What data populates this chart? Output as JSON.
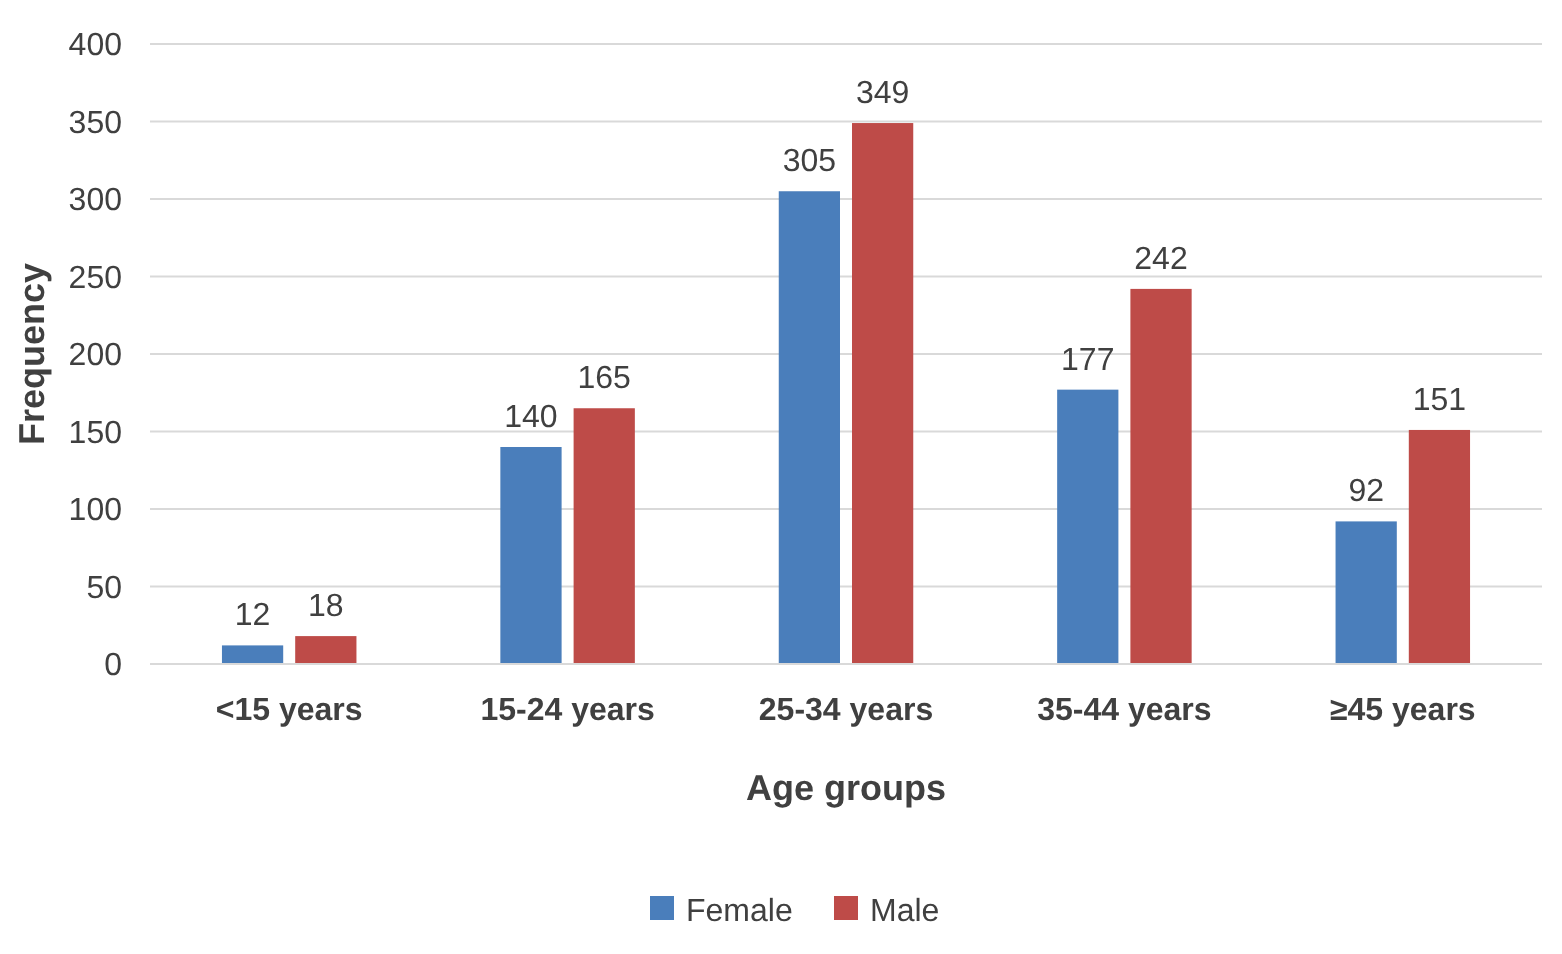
{
  "chart_data": {
    "type": "bar",
    "xlabel": "Age groups",
    "ylabel": "Frequency",
    "categories": [
      "<15 years",
      "15-24 years",
      "25-34 years",
      "35-44 years",
      "≥45 years"
    ],
    "series": [
      {
        "name": "Female",
        "color": "#4a7ebb",
        "values": [
          12,
          140,
          305,
          177,
          92
        ]
      },
      {
        "name": "Male",
        "color": "#be4b48",
        "values": [
          18,
          165,
          349,
          242,
          151
        ]
      }
    ],
    "ylim": [
      0,
      400
    ],
    "yticks": [
      0,
      50,
      100,
      150,
      200,
      250,
      300,
      350,
      400
    ],
    "grid": "y",
    "data_labels": true,
    "legend": "bottom"
  }
}
